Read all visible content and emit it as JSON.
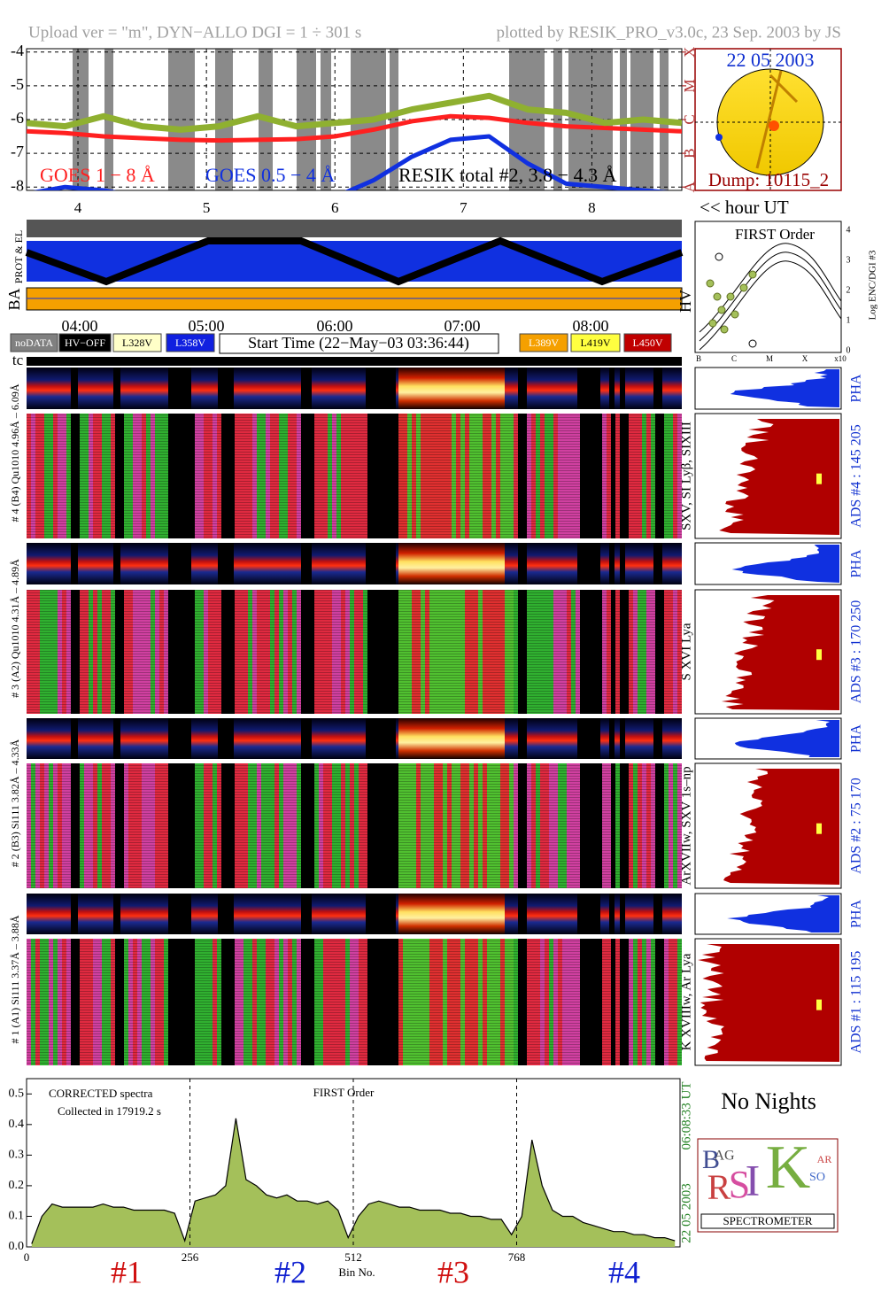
{
  "header": {
    "left": "Upload ver = \"m\", DYN−ALLO DGI =   1 ÷ 301 s",
    "right": "plotted by RESIK_PRO_v3.0c, 23 Sep. 2003 by JS"
  },
  "chart_data": [
    {
      "type": "line",
      "xlim": [
        3.6,
        8.7
      ],
      "xticks": [
        4,
        5,
        6,
        7,
        8
      ],
      "ylim": [
        -8.1,
        -3.9
      ],
      "yticks": [
        -4,
        -5,
        -6,
        -7,
        -8
      ],
      "y2lim": [
        -8.1,
        -3.9
      ],
      "y2ticks": [
        {
          "value": -4,
          "label": "X"
        },
        {
          "value": -5,
          "label": "M"
        },
        {
          "value": -6,
          "label": "C"
        },
        {
          "value": -7,
          "label": "B"
        },
        {
          "value": -8,
          "label": "A"
        }
      ],
      "grid": true,
      "x": [
        3.6,
        3.9,
        4.2,
        4.5,
        4.8,
        5.1,
        5.4,
        5.7,
        6.0,
        6.3,
        6.6,
        6.9,
        7.2,
        7.5,
        7.8,
        8.1,
        8.4,
        8.7
      ],
      "series": [
        {
          "name": "GOES 1 − 8 Å",
          "color": "#ff2020",
          "values": [
            -6.35,
            -6.4,
            -6.5,
            -6.55,
            -6.6,
            -6.62,
            -6.6,
            -6.58,
            -6.5,
            -6.3,
            -6.05,
            -5.9,
            -5.95,
            -6.1,
            -6.2,
            -6.25,
            -6.3,
            -6.35
          ]
        },
        {
          "name": "GOES 0.5 − 4 Å",
          "color": "#1030e0",
          "values": [
            -8.2,
            -8.0,
            -8.1,
            -8.3,
            -8.4,
            -8.4,
            -8.4,
            -8.4,
            -8.3,
            -7.8,
            -7.1,
            -6.6,
            -6.5,
            -7.3,
            -7.9,
            -8.0,
            -8.1,
            -8.2
          ]
        },
        {
          "name": "RESIK total #2, 3.8 − 4.3 Å",
          "color": "#8fb030",
          "values": [
            -6.1,
            -6.2,
            -5.9,
            -6.2,
            -6.3,
            -6.2,
            -5.9,
            -6.2,
            -6.1,
            -6.0,
            -5.7,
            -5.5,
            -5.3,
            -5.7,
            -5.8,
            -6.1,
            -6.0,
            -6.1
          ]
        }
      ]
    },
    {
      "type": "area",
      "title": "FIRST Order",
      "annotations": [
        "CORRECTED spectra",
        "Collected in 17919.2 s"
      ],
      "x_label": "Bin No.",
      "xlim": [
        0,
        1024
      ],
      "xticks": [
        0,
        256,
        512,
        768
      ],
      "ylim": [
        0,
        0.55
      ],
      "yticks": [
        {
          "value": 0,
          "label": "0.0"
        },
        0.1,
        0.2,
        0.3,
        0.4,
        0.5
      ],
      "grid": true,
      "color": "#a4c05a",
      "x": [
        8,
        24,
        40,
        56,
        72,
        88,
        104,
        120,
        136,
        152,
        168,
        184,
        200,
        216,
        232,
        248,
        264,
        280,
        296,
        312,
        328,
        344,
        360,
        376,
        392,
        408,
        424,
        440,
        456,
        472,
        488,
        504,
        520,
        536,
        552,
        568,
        584,
        600,
        616,
        632,
        648,
        664,
        680,
        696,
        712,
        728,
        744,
        760,
        776,
        792,
        808,
        824,
        840,
        856,
        872,
        888,
        904,
        920,
        936,
        952,
        968,
        984,
        1000,
        1016
      ],
      "values": [
        0.01,
        0.1,
        0.14,
        0.13,
        0.13,
        0.13,
        0.13,
        0.14,
        0.13,
        0.13,
        0.12,
        0.12,
        0.12,
        0.12,
        0.11,
        0.02,
        0.15,
        0.16,
        0.17,
        0.2,
        0.42,
        0.22,
        0.2,
        0.17,
        0.16,
        0.17,
        0.15,
        0.15,
        0.14,
        0.15,
        0.12,
        0.03,
        0.1,
        0.14,
        0.15,
        0.14,
        0.13,
        0.13,
        0.12,
        0.12,
        0.12,
        0.11,
        0.11,
        0.1,
        0.1,
        0.09,
        0.09,
        0.04,
        0.1,
        0.35,
        0.2,
        0.12,
        0.1,
        0.1,
        0.08,
        0.07,
        0.06,
        0.05,
        0.05,
        0.04,
        0.04,
        0.03,
        0.03,
        0.02
      ],
      "channels": [
        {
          "label": "#1",
          "color": "#d01010"
        },
        {
          "label": "#2",
          "color": "#1020d0"
        },
        {
          "label": "#3",
          "color": "#d01010"
        },
        {
          "label": "#4",
          "color": "#1020d0"
        }
      ],
      "side_date": "22 05 2003",
      "side_time": "06:08:33 UT"
    }
  ],
  "sun": {
    "date": "22 05 2003",
    "dump": "Dump: 10115_2"
  },
  "hour_label": "<< hour UT",
  "strips": {
    "prot_el": "PROT & EL",
    "ba": "BA",
    "hv": "HV"
  },
  "time_labels": [
    "04:00",
    "05:00",
    "06:00",
    "07:00",
    "08:00"
  ],
  "legend_boxes": [
    {
      "label": "noDATA",
      "color": "#808080",
      "text_color": "#ffffff"
    },
    {
      "label": "HV−OFF",
      "color": "#000000",
      "text_color": "#ffffff"
    },
    {
      "label": "L328V",
      "color": "#ffffc8",
      "text_color": "#000000"
    },
    {
      "label": "L358V",
      "color": "#1020e0",
      "text_color": "#ffffff"
    },
    {
      "label": "L389V",
      "color": "#f5a000",
      "text_color": "#ffffff"
    },
    {
      "label": "L419V",
      "color": "#ffff40",
      "text_color": "#000000"
    },
    {
      "label": "L450V",
      "color": "#c00000",
      "text_color": "#ffffff"
    }
  ],
  "start_time": "Start Time (22−May−03 03:36:44)",
  "first_order_panel": {
    "title": "FIRST Order",
    "x_labels": [
      "B",
      "C",
      "M",
      "X",
      "x10"
    ],
    "y_labels": [
      "0",
      "1",
      "2",
      "3",
      "4"
    ],
    "y_title": "Log ENC/DGI #3"
  },
  "tc": "tc",
  "detectors": [
    {
      "left_label": "# 4 (B4) Qu1010 4.96Å – 6.09Å",
      "lines": "SXV, SI Lyβ, SIXIII",
      "pha": "PHA",
      "ads": "ADS #4 :   145 205"
    },
    {
      "left_label": "# 3 (A2) Qu1010  4.31Å – 4.89Å",
      "lines": "S XVI Lya",
      "pha": "PHA",
      "ads": "ADS #3 :   170 250"
    },
    {
      "left_label": "# 2 (B3) Si111  3.82Å – 4.33Å",
      "lines": "ArXVIIw, SXV 1s–np",
      "pha": "PHA",
      "ads": "ADS #2 :   75 170"
    },
    {
      "left_label": "# 1 (A1) Si111  3.37Å – 3.88Å",
      "lines": "K XVIIIw, Ar Lya",
      "pha": "PHA",
      "ads": "ADS #1 :   115 195"
    }
  ],
  "no_nights": "No Nights",
  "logo": {
    "letters": [
      "B",
      "R",
      "AG",
      "S",
      "I",
      "K",
      "SO",
      "AR"
    ],
    "caption": "SPECTROMETER"
  }
}
